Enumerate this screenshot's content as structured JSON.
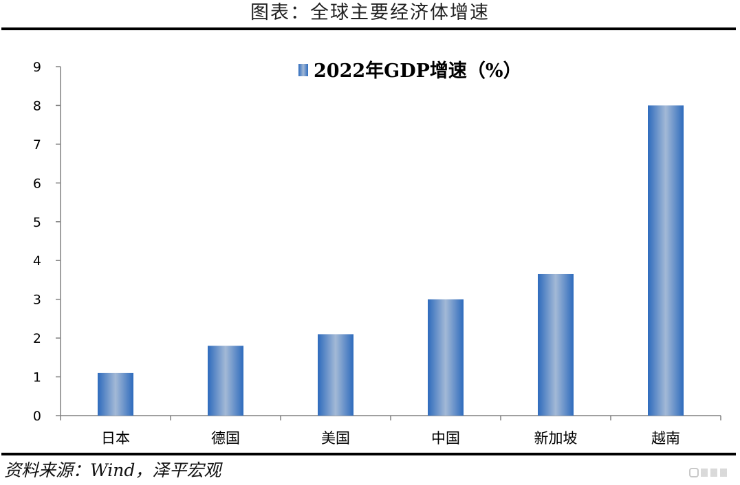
{
  "figure": {
    "title": "图表：全球主要经济体增速",
    "source": "资料来源：Wind，泽平宏观"
  },
  "chart_data": {
    "type": "bar",
    "title": "",
    "xlabel": "",
    "ylabel": "",
    "categories": [
      "日本",
      "德国",
      "美国",
      "中国",
      "新加坡",
      "越南"
    ],
    "series": [
      {
        "name": "2022年GDP增速（%）",
        "values": [
          1.1,
          1.8,
          2.1,
          3.0,
          3.65,
          8.0
        ]
      }
    ],
    "ylim": [
      0,
      9
    ],
    "yticks": [
      0,
      1,
      2,
      3,
      4,
      5,
      6,
      7,
      8,
      9
    ],
    "grid": false,
    "legend_position": "top-center",
    "colors": {
      "bar_edge": "#2e6bbd",
      "bar_center": "#a3b9d6",
      "axis": "#808080"
    }
  }
}
